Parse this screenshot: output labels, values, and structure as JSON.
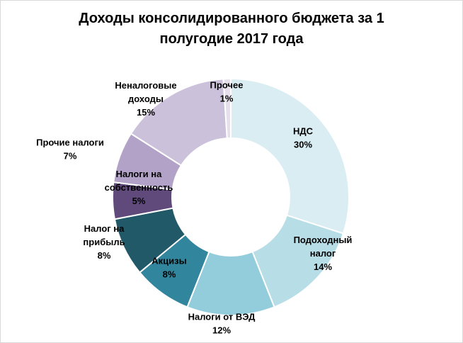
{
  "chart_data": {
    "type": "pie",
    "title_lines": [
      "Доходы консолидированного бюджета за 1",
      "полугодие 2017 года"
    ],
    "categories": [
      "НДС",
      "Подоходный налог",
      "Налоги от ВЭД",
      "Акцизы",
      "Налог на прибыль",
      "Налоги на собственность",
      "Прочие налоги",
      "Неналоговые доходы",
      "Прочее"
    ],
    "values": [
      30,
      14,
      12,
      8,
      8,
      5,
      7,
      15,
      1
    ],
    "value_labels": [
      "30%",
      "14%",
      "12%",
      "8%",
      "8%",
      "5%",
      "7%",
      "15%",
      "1%"
    ],
    "label_lines": [
      [
        "НДС"
      ],
      [
        "Подоходный",
        "налог"
      ],
      [
        "Налоги от ВЭД"
      ],
      [
        "Акцизы"
      ],
      [
        "Налог на",
        "прибыль"
      ],
      [
        "Налоги на",
        "собственность"
      ],
      [
        "Прочие налоги"
      ],
      [
        "Неналоговые",
        "доходы"
      ],
      [
        "Прочее"
      ]
    ],
    "colors": [
      "#daedf3",
      "#b7dde7",
      "#93cddc",
      "#31859c",
      "#215968",
      "#604a7b",
      "#b3a2c7",
      "#ccc1da",
      "#e6e0ec"
    ],
    "donut": true,
    "legend": "none"
  }
}
